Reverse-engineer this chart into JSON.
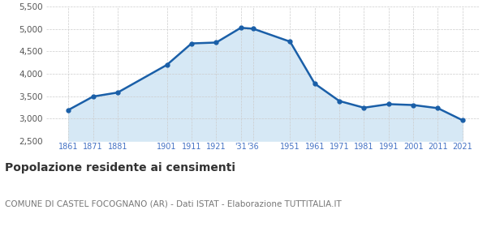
{
  "years": [
    1861,
    1871,
    1881,
    1901,
    1911,
    1921,
    1931,
    1936,
    1951,
    1961,
    1971,
    1981,
    1991,
    2001,
    2011,
    2021
  ],
  "population": [
    3190,
    3490,
    3580,
    4200,
    4680,
    4700,
    5030,
    5010,
    4720,
    3780,
    3390,
    3240,
    3320,
    3300,
    3230,
    2960
  ],
  "line_color": "#1a5fa8",
  "fill_color": "#d6e8f5",
  "marker_color": "#1a5fa8",
  "background_color": "#ffffff",
  "grid_color": "#cccccc",
  "ylim": [
    2500,
    5500
  ],
  "yticks": [
    2500,
    3000,
    3500,
    4000,
    4500,
    5000,
    5500
  ],
  "xlim_left": 1852,
  "xlim_right": 2028,
  "title": "Popolazione residente ai censimenti",
  "subtitle": "COMUNE DI CASTEL FOCOGNANO (AR) - Dati ISTAT - Elaborazione TUTTITALIA.IT",
  "title_fontsize": 10,
  "subtitle_fontsize": 7.5,
  "tick_label_color": "#4472c4",
  "ytick_label_color": "#555555"
}
